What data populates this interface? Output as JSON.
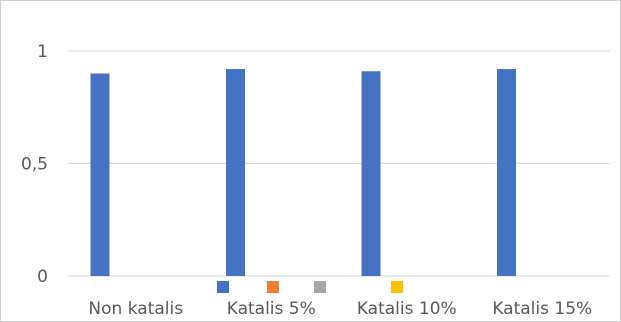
{
  "chart_data": {
    "type": "bar",
    "categories": [
      "Non katalis",
      "Katalis 5%",
      "Katalis 10%",
      "Katalis 15%"
    ],
    "values": [
      0.9,
      0.92,
      0.91,
      0.92
    ],
    "ylim": [
      0,
      1
    ],
    "yticks": [
      0,
      0.5,
      1
    ],
    "ytick_labels": [
      "0",
      "0,5",
      "1"
    ],
    "grid": true,
    "bar_color": "#4472c4",
    "legend": {
      "placement": "bottom",
      "markers": [
        {
          "color": "#4472c4"
        },
        {
          "color": "#ed7d31"
        },
        {
          "color": "#a5a5a5"
        },
        {
          "color": "#ffc000"
        }
      ]
    }
  }
}
